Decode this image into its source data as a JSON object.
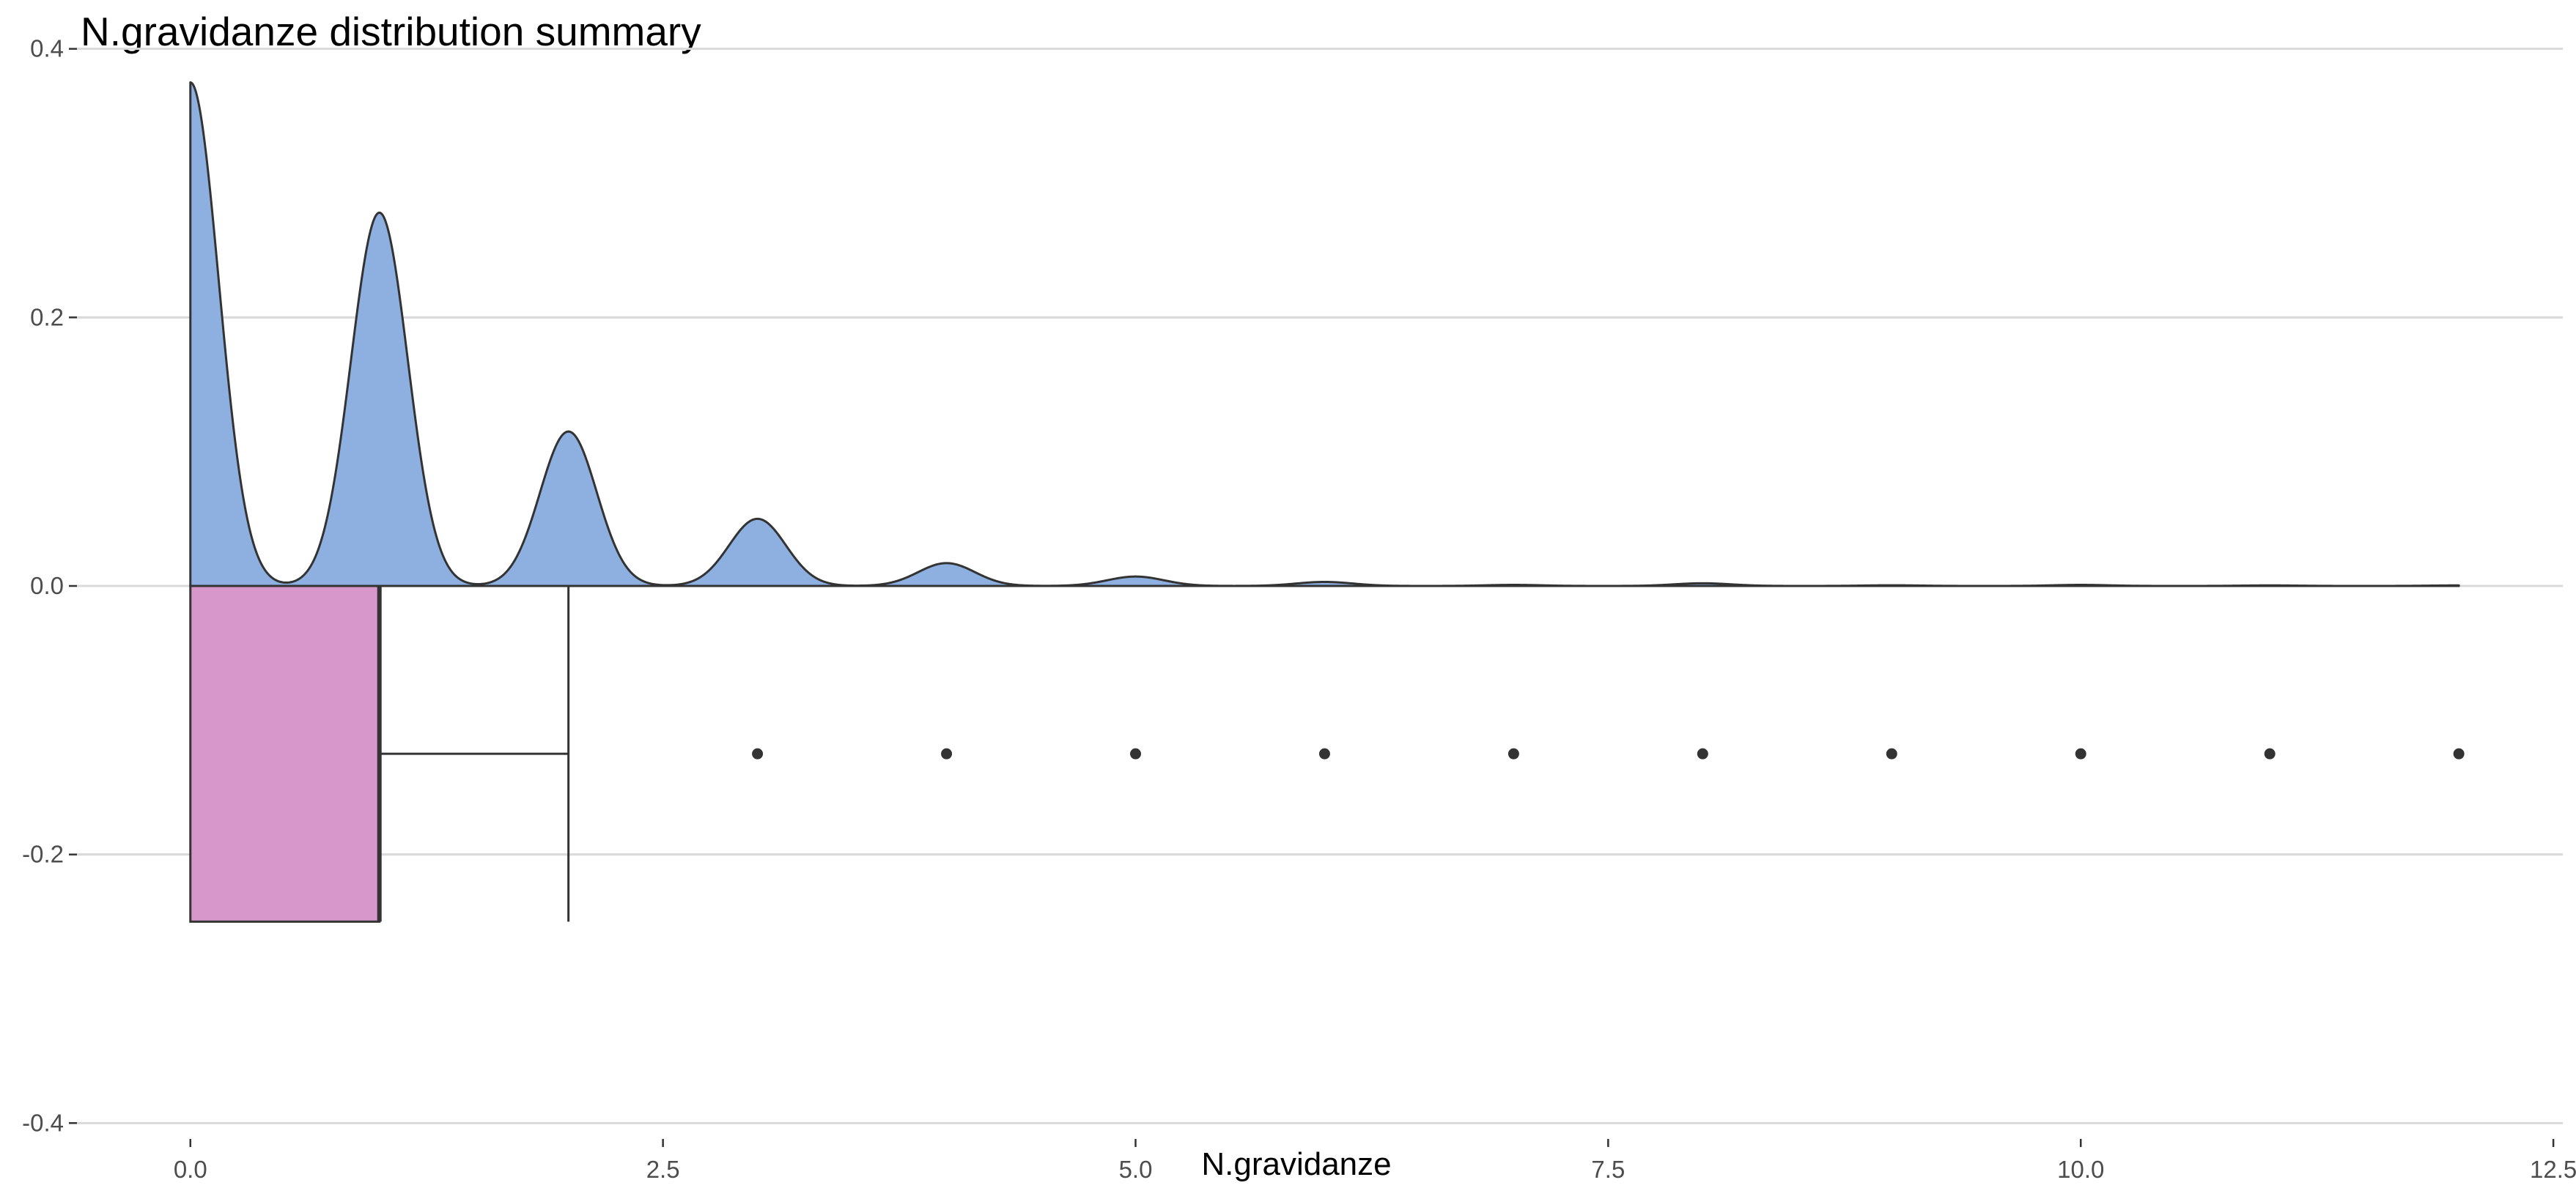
{
  "chart_data": {
    "type": "density-boxplot",
    "title": "N.gravidanze distribution summary",
    "xlabel": "N.gravidanze",
    "ylabel": "",
    "xlim": [
      -0.6,
      12.55
    ],
    "ylim": [
      -0.42,
      0.42
    ],
    "x_ticks": [
      0,
      2.5,
      5,
      7.5,
      10,
      12.5
    ],
    "x_tick_labels": [
      "0.0",
      "2.5",
      "5.0",
      "7.5",
      "10.0",
      "12.5"
    ],
    "y_ticks": [
      -0.4,
      -0.2,
      0,
      0.2,
      0.4
    ],
    "y_tick_labels": [
      "-0.4",
      "-0.2",
      "0.0",
      "0.2",
      "0.4"
    ],
    "grid": "horizontal",
    "density": {
      "range": [
        0,
        12
      ],
      "peaks": [
        {
          "x": 0,
          "y": 0.375
        },
        {
          "x": 1,
          "y": 0.278
        },
        {
          "x": 2,
          "y": 0.115
        },
        {
          "x": 3,
          "y": 0.05
        },
        {
          "x": 4,
          "y": 0.017
        },
        {
          "x": 5,
          "y": 0.007
        },
        {
          "x": 6,
          "y": 0.003
        },
        {
          "x": 7,
          "y": 0.0008
        },
        {
          "x": 8,
          "y": 0.002
        },
        {
          "x": 9,
          "y": 0.0005
        },
        {
          "x": 10,
          "y": 0.0008
        },
        {
          "x": 11,
          "y": 0.0004
        },
        {
          "x": 12,
          "y": 0.0004
        }
      ],
      "bandwidth": 0.15
    },
    "boxplot": {
      "min": 0,
      "q1": 0,
      "median": 1,
      "q3": 1,
      "whisker_high": 2,
      "y_center": -0.125,
      "y_bottom": -0.25,
      "y_top": 0,
      "outliers": [
        3,
        4,
        5,
        6,
        7,
        8,
        9,
        10,
        11,
        12
      ]
    },
    "colors": {
      "density_fill": "#8DB0E0",
      "box_fill": "#D897CB",
      "stroke": "#333333",
      "grid": "#D9D9D9",
      "outlier": "#333333"
    }
  }
}
